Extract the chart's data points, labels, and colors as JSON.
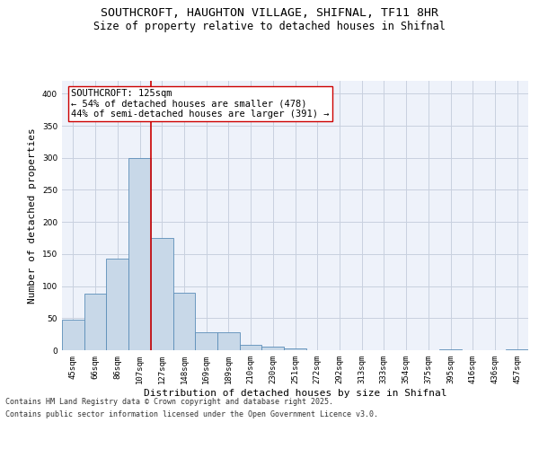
{
  "title_line1": "SOUTHCROFT, HAUGHTON VILLAGE, SHIFNAL, TF11 8HR",
  "title_line2": "Size of property relative to detached houses in Shifnal",
  "xlabel": "Distribution of detached houses by size in Shifnal",
  "ylabel": "Number of detached properties",
  "categories": [
    "45sqm",
    "66sqm",
    "86sqm",
    "107sqm",
    "127sqm",
    "148sqm",
    "169sqm",
    "189sqm",
    "210sqm",
    "230sqm",
    "251sqm",
    "272sqm",
    "292sqm",
    "313sqm",
    "333sqm",
    "354sqm",
    "375sqm",
    "395sqm",
    "416sqm",
    "436sqm",
    "457sqm"
  ],
  "values": [
    47,
    88,
    143,
    300,
    175,
    90,
    28,
    28,
    8,
    5,
    3,
    0,
    0,
    0,
    0,
    0,
    0,
    1,
    0,
    0,
    2
  ],
  "bar_color": "#c8d8e8",
  "bar_edge_color": "#5b8db8",
  "grid_color": "#c8d0df",
  "background_color": "#eef2fa",
  "vline_color": "#cc0000",
  "vline_x_index": 3.5,
  "annotation_line1": "SOUTHCROFT: 125sqm",
  "annotation_line2": "← 54% of detached houses are smaller (478)",
  "annotation_line3": "44% of semi-detached houses are larger (391) →",
  "annotation_box_color": "#ffffff",
  "annotation_box_edge": "#cc0000",
  "footer_line1": "Contains HM Land Registry data © Crown copyright and database right 2025.",
  "footer_line2": "Contains public sector information licensed under the Open Government Licence v3.0.",
  "ylim": [
    0,
    420
  ],
  "yticks": [
    0,
    50,
    100,
    150,
    200,
    250,
    300,
    350,
    400
  ],
  "title_fontsize": 9.5,
  "subtitle_fontsize": 8.5,
  "xlabel_fontsize": 8,
  "ylabel_fontsize": 8,
  "tick_fontsize": 6.5,
  "footer_fontsize": 6,
  "annotation_fontsize": 7.5
}
